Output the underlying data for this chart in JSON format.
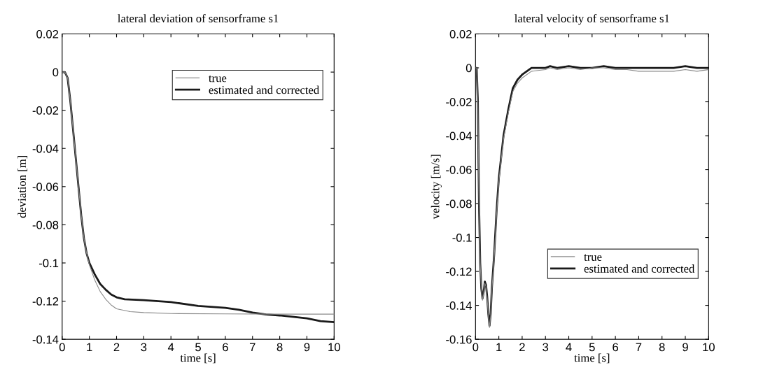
{
  "chart_data": [
    {
      "type": "line",
      "title": "lateral deviation of sensorframe s1",
      "xlabel": "time [s]",
      "ylabel": "deviation [m]",
      "xlim": [
        0,
        10
      ],
      "xticks": [
        0,
        1,
        2,
        3,
        4,
        5,
        6,
        7,
        8,
        9,
        10
      ],
      "ylim": [
        -0.14,
        0.02
      ],
      "yticks": [
        -0.14,
        -0.12,
        {
          "value": -0.1,
          "label": "-0.1"
        },
        -0.08,
        -0.06,
        -0.04,
        -0.02,
        0,
        0.02
      ],
      "legend": "upper right",
      "grid": false,
      "series": [
        {
          "name": "true",
          "color": "#8a8a8a",
          "x": [
            0,
            0.1,
            0.2,
            0.3,
            0.4,
            0.5,
            0.6,
            0.7,
            0.8,
            0.9,
            1.0,
            1.2,
            1.4,
            1.6,
            1.8,
            2.0,
            2.5,
            3,
            4,
            6,
            8,
            10
          ],
          "values": [
            0,
            0,
            -0.003,
            -0.015,
            -0.03,
            -0.045,
            -0.06,
            -0.075,
            -0.087,
            -0.095,
            -0.101,
            -0.109,
            -0.115,
            -0.119,
            -0.122,
            -0.124,
            -0.1255,
            -0.126,
            -0.1265,
            -0.1267,
            -0.1268,
            -0.1268
          ]
        },
        {
          "name": "estimated and corrected",
          "color": "#1a1a1a",
          "x": [
            0,
            0.1,
            0.2,
            0.3,
            0.4,
            0.5,
            0.6,
            0.7,
            0.8,
            0.9,
            1.0,
            1.2,
            1.4,
            1.6,
            1.8,
            2.0,
            2.3,
            3,
            4,
            5,
            6,
            6.5,
            7,
            7.5,
            8,
            9,
            9.5,
            10
          ],
          "values": [
            0,
            0,
            -0.003,
            -0.015,
            -0.03,
            -0.045,
            -0.06,
            -0.075,
            -0.087,
            -0.095,
            -0.1,
            -0.106,
            -0.111,
            -0.114,
            -0.1165,
            -0.118,
            -0.119,
            -0.1195,
            -0.1205,
            -0.1225,
            -0.1235,
            -0.1245,
            -0.126,
            -0.127,
            -0.1275,
            -0.129,
            -0.1305,
            -0.131
          ]
        }
      ]
    },
    {
      "type": "line",
      "title": "lateral velocity of sensorframe s1",
      "xlabel": "time [s]",
      "ylabel": "velocity [m/s]",
      "xlim": [
        0,
        10
      ],
      "xticks": [
        0,
        1,
        2,
        3,
        4,
        5,
        6,
        7,
        8,
        9,
        10
      ],
      "ylim": [
        -0.16,
        0.02
      ],
      "yticks": [
        -0.16,
        -0.14,
        -0.12,
        {
          "value": -0.1,
          "label": "-0.1"
        },
        -0.08,
        -0.06,
        -0.04,
        -0.02,
        0,
        0.02
      ],
      "legend": "lower right",
      "grid": false,
      "series": [
        {
          "name": "true",
          "color": "#8a8a8a",
          "x": [
            0,
            0.05,
            0.1,
            0.15,
            0.2,
            0.25,
            0.3,
            0.35,
            0.4,
            0.45,
            0.5,
            0.55,
            0.6,
            0.65,
            0.7,
            0.8,
            0.9,
            1.0,
            1.2,
            1.4,
            1.6,
            1.8,
            2.0,
            2.4,
            3,
            3.2,
            3.5,
            4,
            4.5,
            5,
            5.5,
            6,
            6.5,
            7,
            7.5,
            8,
            8.5,
            9,
            9.5,
            10
          ],
          "values": [
            0,
            0,
            -0.02,
            -0.08,
            -0.115,
            -0.13,
            -0.137,
            -0.133,
            -0.127,
            -0.129,
            -0.136,
            -0.146,
            -0.153,
            -0.146,
            -0.131,
            -0.112,
            -0.087,
            -0.067,
            -0.042,
            -0.027,
            -0.014,
            -0.009,
            -0.006,
            -0.002,
            -0.001,
            0,
            -0.001,
            0,
            -0.001,
            0,
            0,
            -0.001,
            -0.001,
            -0.002,
            -0.002,
            -0.002,
            -0.002,
            -0.001,
            -0.002,
            -0.001
          ]
        },
        {
          "name": "estimated and corrected",
          "color": "#1a1a1a",
          "x": [
            0,
            0.05,
            0.1,
            0.15,
            0.2,
            0.25,
            0.3,
            0.35,
            0.4,
            0.45,
            0.5,
            0.55,
            0.6,
            0.65,
            0.7,
            0.8,
            0.9,
            1.0,
            1.2,
            1.4,
            1.6,
            1.8,
            2.0,
            2.4,
            3,
            3.2,
            3.5,
            4,
            4.5,
            5,
            5.5,
            6,
            6.5,
            7,
            7.5,
            8,
            8.5,
            9,
            9.5,
            10
          ],
          "values": [
            0,
            0,
            -0.02,
            -0.08,
            -0.115,
            -0.13,
            -0.136,
            -0.132,
            -0.126,
            -0.128,
            -0.135,
            -0.145,
            -0.152,
            -0.145,
            -0.13,
            -0.11,
            -0.085,
            -0.065,
            -0.04,
            -0.025,
            -0.012,
            -0.007,
            -0.004,
            0,
            0,
            0.001,
            0,
            0.001,
            0,
            0,
            0.001,
            0,
            0,
            0,
            0,
            0,
            0,
            0.001,
            0,
            0
          ]
        }
      ]
    }
  ]
}
